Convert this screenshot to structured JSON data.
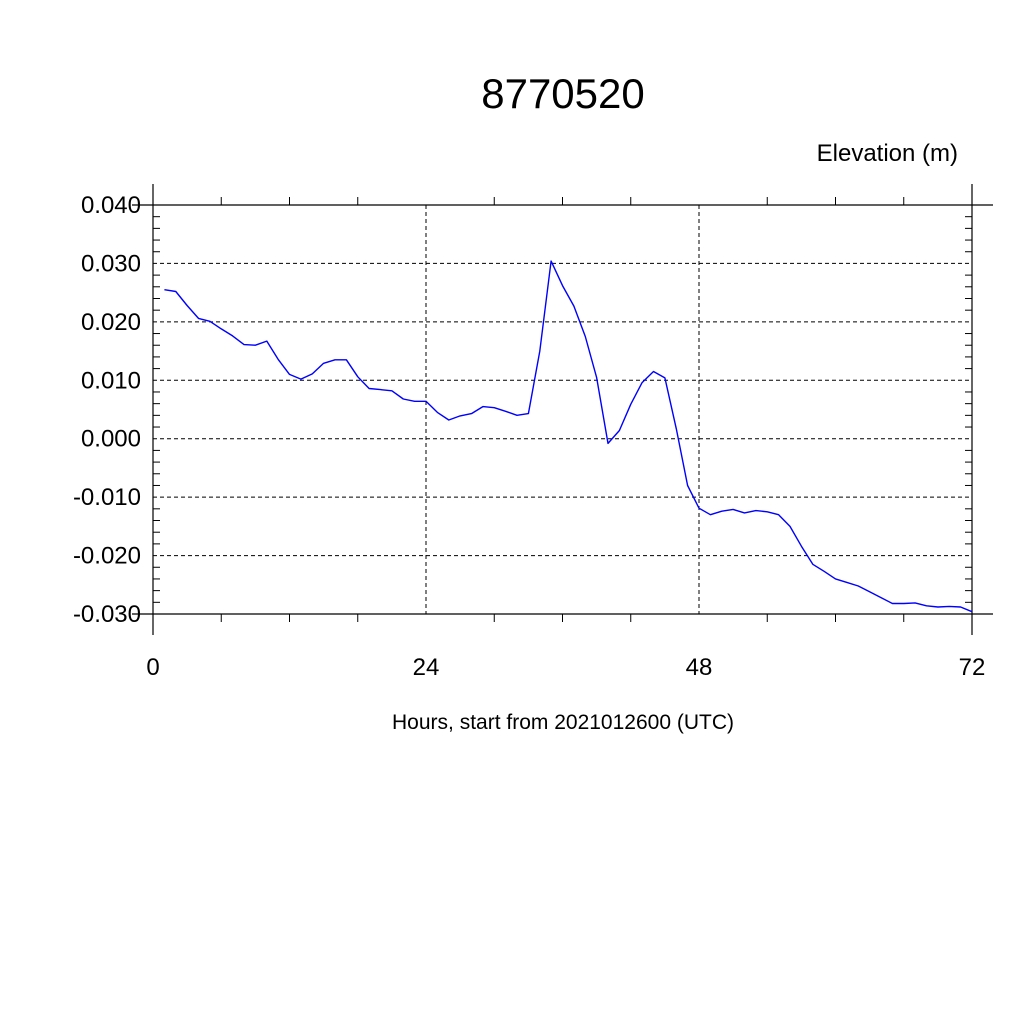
{
  "chart_data": {
    "type": "line",
    "title": "8770520",
    "ylabel": "Elevation (m)",
    "xlabel": "Hours, start from 2021012600 (UTC)",
    "xlim": [
      0,
      72
    ],
    "ylim": [
      -0.03,
      0.04
    ],
    "x_ticks": [
      0,
      24,
      48,
      72
    ],
    "x_tick_labels": [
      "0",
      "24",
      "48",
      "72"
    ],
    "y_ticks": [
      0.04,
      0.03,
      0.02,
      0.01,
      0.0,
      -0.01,
      -0.02,
      -0.03
    ],
    "y_tick_labels": [
      "0.040",
      "0.030",
      "0.020",
      "0.010",
      "0.000",
      "-0.010",
      "-0.020",
      "-0.030"
    ],
    "grid": true,
    "series_color": "#0000ff",
    "series": [
      {
        "x": [
          1,
          2,
          3,
          4,
          5,
          6,
          7,
          8,
          9,
          10,
          11,
          12,
          13,
          14,
          15,
          16,
          17,
          18,
          19,
          20,
          21,
          22,
          23,
          24,
          25,
          26,
          27,
          28,
          29,
          30,
          31,
          32,
          33,
          34,
          35,
          36,
          37,
          38,
          39,
          40,
          41,
          42,
          43,
          44,
          45,
          46,
          47,
          48,
          49,
          50,
          51,
          52,
          53,
          54,
          55,
          56,
          57,
          58,
          59,
          60,
          61,
          62,
          63,
          64,
          65,
          66,
          67,
          68,
          69,
          70,
          71,
          72
        ],
        "values": [
          0.0255,
          0.0252,
          0.0228,
          0.0206,
          0.0201,
          0.0188,
          0.0176,
          0.0161,
          0.016,
          0.0167,
          0.0136,
          0.011,
          0.0102,
          0.0111,
          0.0129,
          0.0135,
          0.0135,
          0.0106,
          0.0086,
          0.0084,
          0.0082,
          0.0068,
          0.0064,
          0.0064,
          0.0045,
          0.0032,
          0.0039,
          0.0043,
          0.0055,
          0.0053,
          0.0047,
          0.004,
          0.0043,
          0.015,
          0.0304,
          0.0262,
          0.0227,
          0.0175,
          0.0105,
          -0.0008,
          0.0014,
          0.0059,
          0.0096,
          0.0115,
          0.0104,
          0.0017,
          -0.008,
          -0.0119,
          -0.013,
          -0.0124,
          -0.0121,
          -0.0127,
          -0.0123,
          -0.0125,
          -0.013,
          -0.015,
          -0.0184,
          -0.0215,
          -0.0227,
          -0.024,
          -0.0246,
          -0.0252,
          -0.0262,
          -0.0272,
          -0.0282,
          -0.0282,
          -0.0281,
          -0.0286,
          -0.0288,
          -0.0287,
          -0.0288,
          -0.0296
        ]
      }
    ]
  }
}
